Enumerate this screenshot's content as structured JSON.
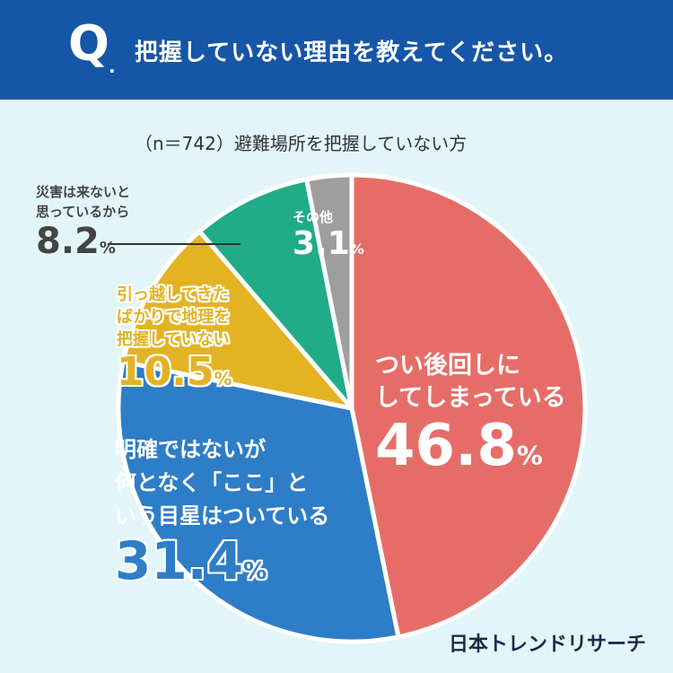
{
  "header": {
    "q": "Q",
    "question": "把握していない理由を教えてください。"
  },
  "brand": "日本トレンドリサーチ",
  "colors": {
    "header": "#1656a6",
    "background": "#e2f6fa"
  },
  "chart_data": {
    "type": "pie",
    "subtitle": "（n＝742）避難場所を把握していない方",
    "title": "",
    "unit": "%",
    "slices": [
      {
        "label": "つい後回しにしてしまっている",
        "lines": [
          "つい後回しに",
          "してしまっている"
        ],
        "value": 46.8,
        "color": "#e66d67"
      },
      {
        "label": "明確ではないが何となく「ここ」という目星はついている",
        "lines": [
          "明確ではないが",
          "何となく「ここ」と",
          "いう目星はついている"
        ],
        "value": 31.4,
        "color": "#2e7dc7"
      },
      {
        "label": "引っ越してきたばかりで地理を把握していない",
        "lines": [
          "引っ越してきた",
          "ばかりで地理を",
          "把握していない"
        ],
        "value": 10.5,
        "color": "#e3b324"
      },
      {
        "label": "災害は来ないと思っているから",
        "lines": [
          "災害は来ないと",
          "思っているから"
        ],
        "value": 8.2,
        "color": "#1fac87"
      },
      {
        "label": "その他",
        "lines": [
          "その他"
        ],
        "value": 3.1,
        "color": "#9e9e9e"
      }
    ]
  }
}
